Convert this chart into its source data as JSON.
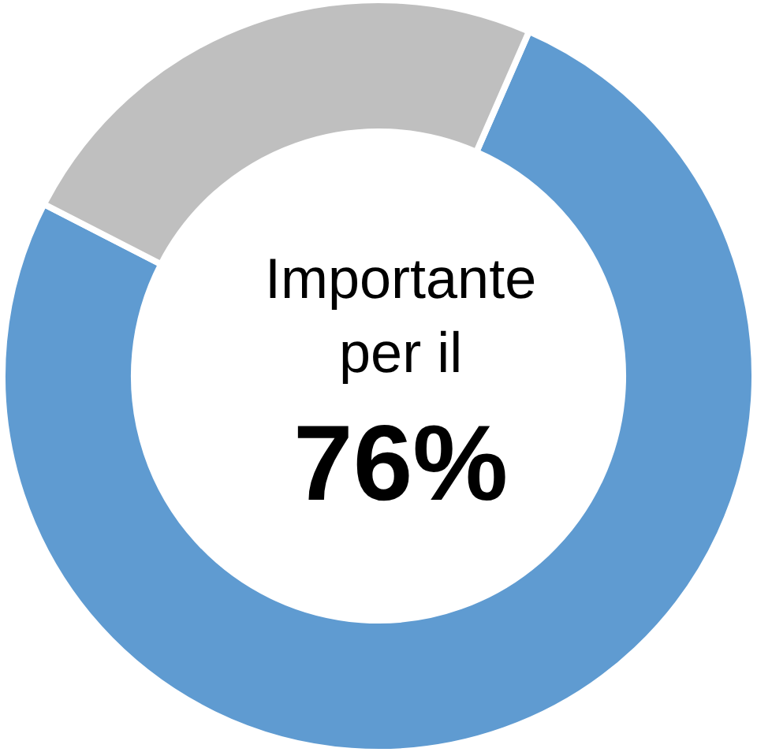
{
  "chart_data": {
    "type": "donut",
    "categories": [
      null,
      null
    ],
    "values": [
      76,
      24
    ],
    "colors": [
      "#5f9bd1",
      "#bfbfbf"
    ],
    "annotations": [
      "Importante per il",
      "76%"
    ],
    "legend": false
  }
}
